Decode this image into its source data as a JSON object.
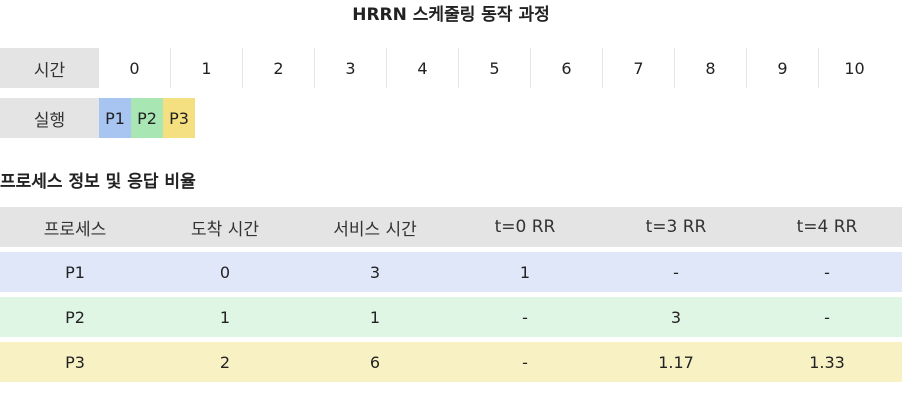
{
  "title": "HRRN 스케줄링 동작 과정",
  "timeline": {
    "label": "시간",
    "ticks": [
      "0",
      "1",
      "2",
      "3",
      "4",
      "5",
      "6",
      "7",
      "8",
      "9",
      "10"
    ]
  },
  "execution": {
    "label": "실행",
    "blocks": [
      {
        "label": "P1",
        "color": "#a8c4f0"
      },
      {
        "label": "P2",
        "color": "#a8e6b4"
      },
      {
        "label": "P3",
        "color": "#f4e080"
      }
    ]
  },
  "table": {
    "title": "프로세스 정보 및 응답 비율",
    "headers": [
      "프로세스",
      "도착 시간",
      "서비스 시간",
      "t=0 RR",
      "t=3 RR",
      "t=4 RR"
    ],
    "rows": [
      {
        "cells": [
          "P1",
          "0",
          "3",
          "1",
          "-",
          "-"
        ],
        "color": "#dfe7f8"
      },
      {
        "cells": [
          "P2",
          "1",
          "1",
          "-",
          "3",
          "-"
        ],
        "color": "#e0f6e5"
      },
      {
        "cells": [
          "P3",
          "2",
          "6",
          "-",
          "1.17",
          "1.33"
        ],
        "color": "#f8f1c4"
      }
    ]
  }
}
